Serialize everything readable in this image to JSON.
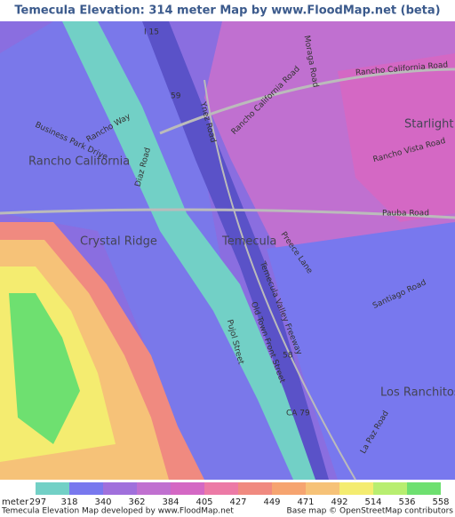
{
  "header": {
    "title": "Temecula Elevation: 314 meter Map by www.FloodMap.net (beta)"
  },
  "map": {
    "places": [
      "Temecula",
      "Rancho California",
      "Crystal Ridge",
      "Starlight Ridge",
      "Los Ranchitos"
    ],
    "roads": [
      "Rancho California Road",
      "Ynez Road",
      "Rancho Vista Road",
      "Pauba Road",
      "Santiago Road",
      "Old Town Front Street",
      "Temecula Valley Freeway",
      "Business Park Drive",
      "Rancho Way",
      "Diaz Road",
      "Moraga Road",
      "Pujol Street",
      "Preece Lane",
      "La Paz Road",
      "CA 79",
      "I 15",
      "59",
      "58"
    ]
  },
  "legend": {
    "unit": "meter",
    "values": [
      297,
      318,
      340,
      362,
      384,
      405,
      427,
      449,
      471,
      492,
      514,
      536,
      558
    ],
    "colors": [
      "#72d0c6",
      "#7878ee",
      "#a070dc",
      "#c070d0",
      "#d468c4",
      "#ec7aa6",
      "#f08a80",
      "#f6a470",
      "#f6c278",
      "#f4ec70",
      "#b8ee70",
      "#6ee070"
    ]
  },
  "footer": {
    "left": "Temecula Elevation Map developed by www.FloodMap.net",
    "right": "Base map © OpenStreetMap contributors"
  }
}
